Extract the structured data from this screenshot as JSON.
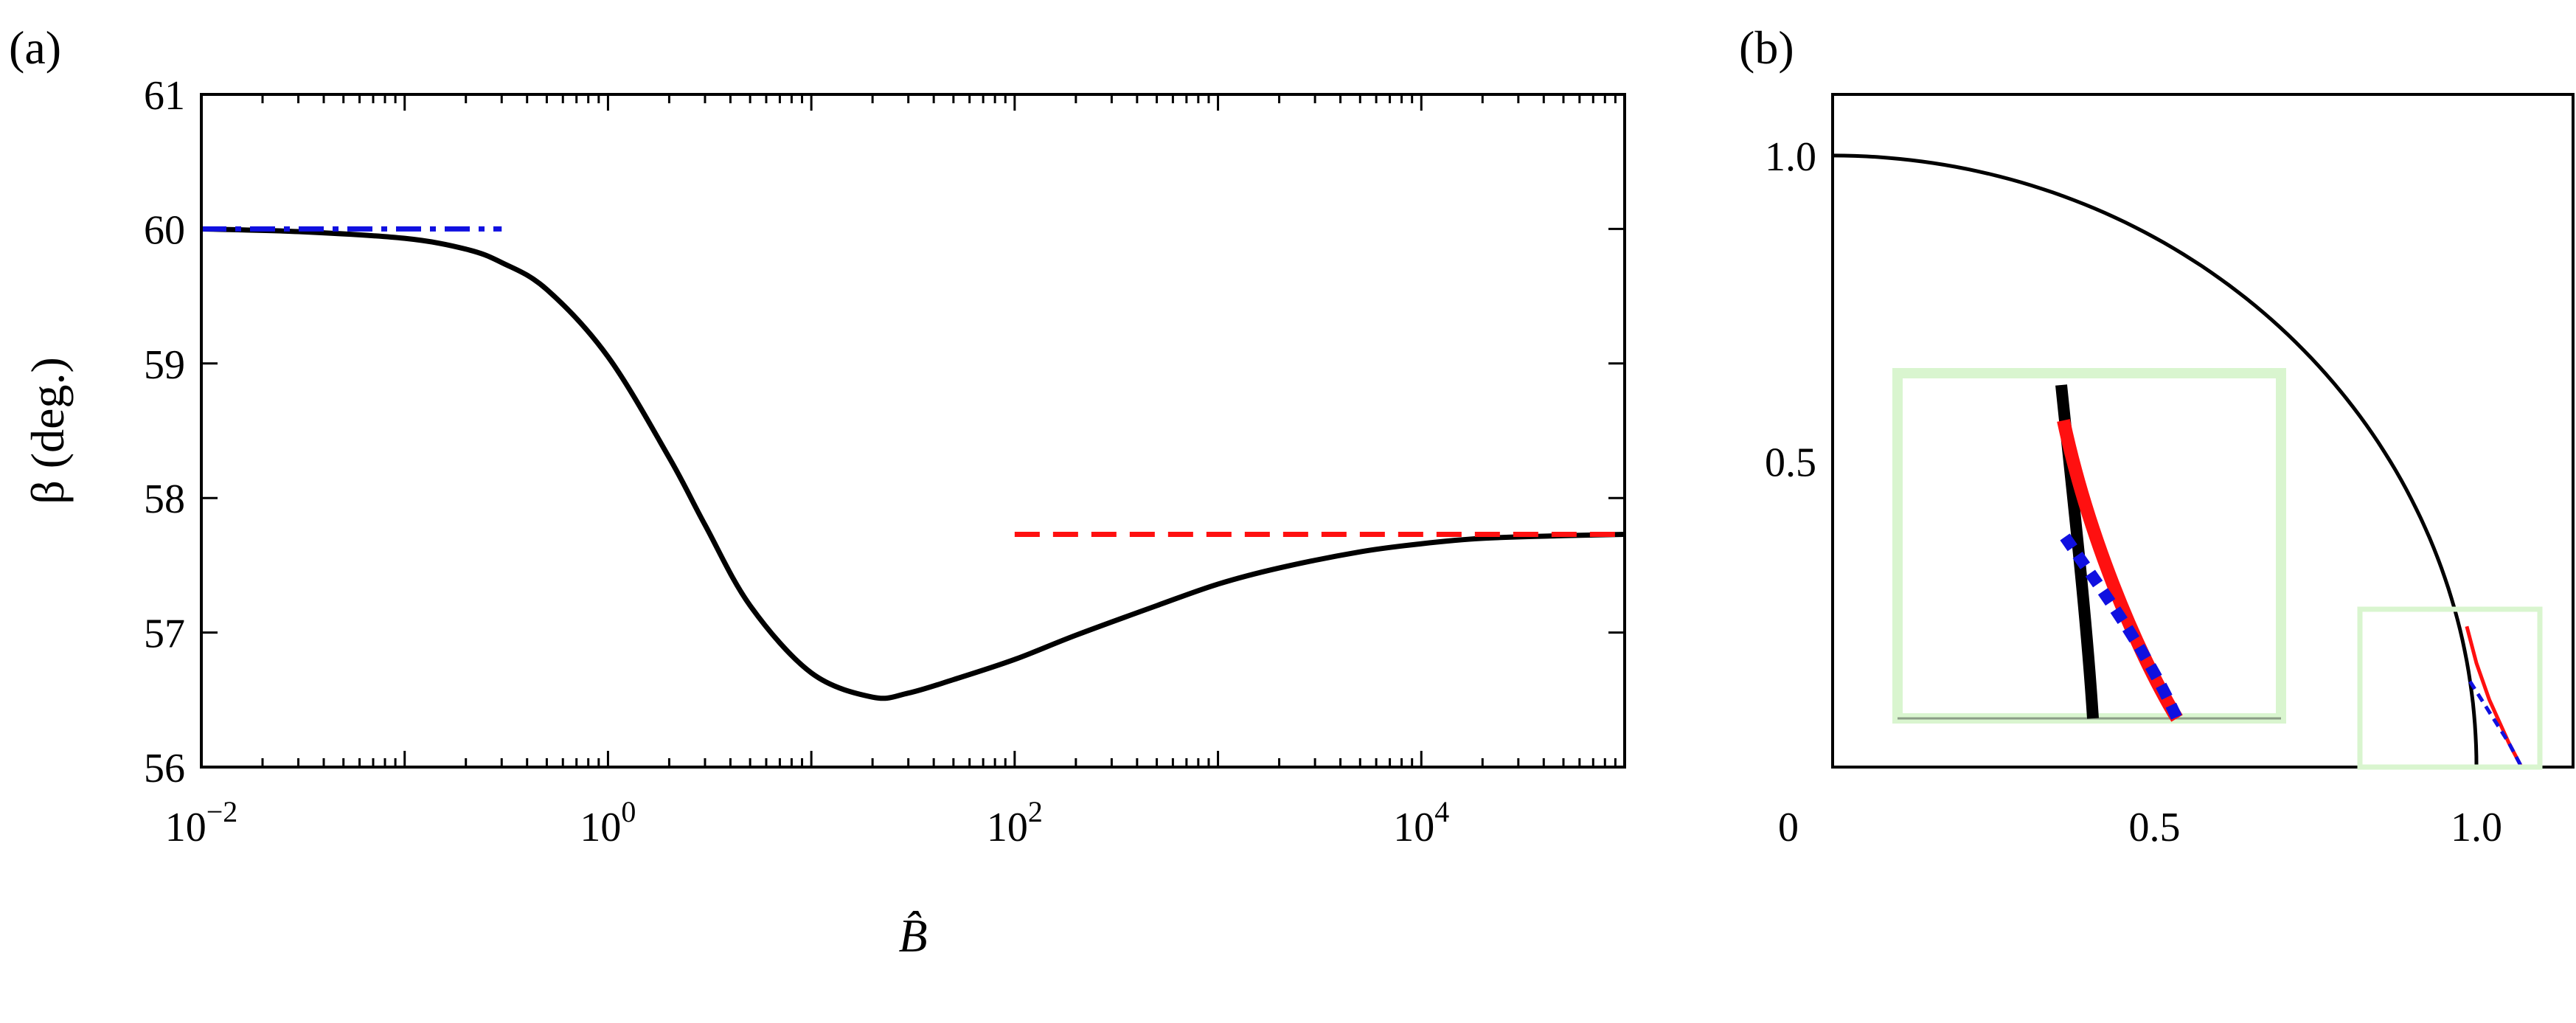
{
  "colors": {
    "black": "#000000",
    "blue": "#1010e0",
    "red": "#ff1010",
    "inset_frame": "#d9f5cf"
  },
  "chart_data": [
    {
      "panel_label": "(a)",
      "type": "line",
      "xscale": "log",
      "xlim": [
        0.01,
        100000
      ],
      "ylim": [
        56,
        61
      ],
      "x_ticks": [
        {
          "value": 0.01,
          "base": "10",
          "exp": "−2"
        },
        {
          "value": 1,
          "base": "10",
          "exp": "0"
        },
        {
          "value": 100,
          "base": "10",
          "exp": "2"
        },
        {
          "value": 10000,
          "base": "10",
          "exp": "4"
        }
      ],
      "y_ticks": [
        "56",
        "57",
        "58",
        "59",
        "60",
        "61"
      ],
      "xlabel": "B̂",
      "ylabel": "β (deg.)",
      "grid": false,
      "series": [
        {
          "style": "solid",
          "color": "#000000",
          "x": [
            0.01,
            0.03,
            0.1,
            0.2,
            0.3,
            0.5,
            1,
            2,
            3,
            5,
            10,
            20,
            30,
            50,
            100,
            200,
            500,
            1000,
            2000,
            5000,
            10000,
            20000,
            50000,
            100000
          ],
          "y": [
            60.0,
            59.98,
            59.93,
            59.85,
            59.75,
            59.55,
            59.05,
            58.3,
            57.8,
            57.2,
            56.7,
            56.52,
            56.55,
            56.65,
            56.8,
            56.98,
            57.2,
            57.36,
            57.48,
            57.6,
            57.66,
            57.7,
            57.72,
            57.73
          ]
        },
        {
          "style": "dash-dot",
          "color": "#1010e0",
          "x": [
            0.01,
            0.3
          ],
          "y": [
            60.0,
            60.0
          ]
        },
        {
          "style": "dashed",
          "color": "#ff1010",
          "x": [
            100,
            100000
          ],
          "y": [
            57.73,
            57.73
          ]
        }
      ]
    },
    {
      "panel_label": "(b)",
      "type": "line",
      "xlim": [
        0,
        1.15
      ],
      "ylim": [
        0,
        1.1
      ],
      "x_ticks": [
        "0",
        "0.5",
        "1.0"
      ],
      "y_ticks": [
        "0.5",
        "1.0"
      ],
      "grid": false,
      "series": [
        {
          "style": "solid",
          "color": "#000000",
          "shape": "quarter circle, radius 1.0"
        },
        {
          "style": "solid",
          "color": "#ff1010",
          "x": [
            0.985,
            1.0,
            1.02,
            1.05,
            1.07
          ],
          "y": [
            0.23,
            0.17,
            0.11,
            0.04,
            0.0
          ]
        },
        {
          "style": "dashed",
          "color": "#1010e0",
          "x": [
            0.99,
            1.02,
            1.05,
            1.07
          ],
          "y": [
            0.14,
            0.09,
            0.04,
            0.0
          ]
        }
      ],
      "inset": {
        "zoom_box_x": [
          0.86,
          1.15
        ],
        "zoom_box_y": [
          0.0,
          0.26
        ]
      }
    }
  ]
}
